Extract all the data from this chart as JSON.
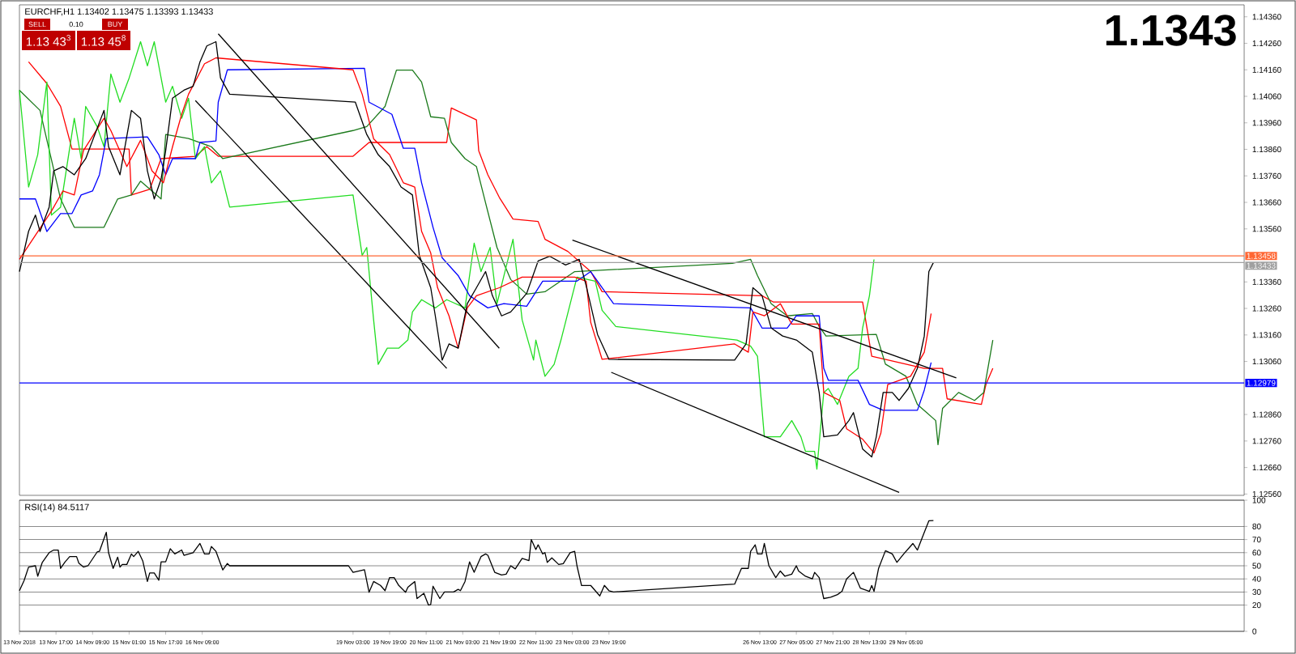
{
  "chart_data": [
    {
      "type": "line",
      "title": "EURCHF,H1 1.13402 1.13475 1.13393 1.13433",
      "annotations": [
        "1.1343",
        "SELL",
        "0.10",
        "BUY",
        "1.13 43$^{3}$",
        "1.13 45$^{8}$"
      ],
      "xlim": [
        "2018-11-13T01:00",
        "2018-12-05T09:00"
      ],
      "ylim": [
        1.12555,
        1.14405
      ],
      "tick_labels": "y",
      "yticks": [
        {
          "value": 1.1256,
          "label": "1.12560"
        },
        {
          "value": 1.1266,
          "label": "1.12660"
        },
        {
          "value": 1.1276,
          "label": "1.12760"
        },
        {
          "value": 1.1286,
          "label": "1.12860"
        },
        {
          "value": 1.1306,
          "label": "1.13060"
        },
        {
          "value": 1.1316,
          "label": "1.13160"
        },
        {
          "value": 1.1326,
          "label": "1.13260"
        },
        {
          "value": 1.1336,
          "label": "1.13360"
        },
        {
          "value": 1.1356,
          "label": "1.13560"
        },
        {
          "value": 1.1366,
          "label": "1.13660"
        },
        {
          "value": 1.1376,
          "label": "1.13760"
        },
        {
          "value": 1.1386,
          "label": "1.13860"
        },
        {
          "value": 1.1396,
          "label": "1.13960"
        },
        {
          "value": 1.1406,
          "label": "1.14060"
        },
        {
          "value": 1.1416,
          "label": "1.14160"
        },
        {
          "value": 1.1426,
          "label": "1.14260"
        },
        {
          "value": 1.1436,
          "label": "1.14360"
        }
      ],
      "ref_lines": [
        {
          "axis": "y",
          "value": 1.13458,
          "label": "1.13458",
          "color": "#ff6633"
        },
        {
          "axis": "y",
          "value": 1.13433,
          "label": "1.13433",
          "color": "#a0a0a0"
        },
        {
          "axis": "y",
          "value": 1.12979,
          "label": "1.12979",
          "color": "#0000ff"
        }
      ],
      "series": [
        {
          "color": "#ff0000",
          "x": [
            "2018-11-13T05:00",
            "2018-11-13T13:00",
            "2018-11-13T19:00",
            "2018-11-14T00:00",
            "2018-11-15T01:00",
            "2018-11-15T02:00",
            "2018-11-15T10:00",
            "2018-11-15T15:00",
            "2018-11-16T06:00",
            "2018-11-16T11:00",
            "2018-11-16T16:00",
            "2018-11-19T03:00",
            "2018-11-19T10:00",
            "2018-11-20T20:00",
            "2018-11-20T22:00",
            "2018-11-21T09:00",
            "2018-11-21T10:00",
            "2018-11-21T14:00",
            "2018-11-21T19:00",
            "2018-11-22T01:00",
            "2018-11-22T12:00",
            "2018-11-22T15:00",
            "2018-11-23T01:00",
            "2018-11-23T11:00",
            "2018-11-23T16:00",
            "2018-11-26T14:00",
            "2018-11-26T19:00",
            "2018-11-28T10:00",
            "2018-11-28T14:00",
            "2018-11-29T13:00",
            "2018-11-29T21:00",
            "2018-11-29T23:00",
            "2018-11-30T14:00",
            "2018-11-30T16:00",
            "2018-11-30T19:00"
          ],
          "values": [
            1.1419,
            1.14108,
            1.14022,
            1.13861,
            1.13861,
            1.13688,
            1.13709,
            1.13825,
            1.13834,
            1.1387,
            1.13834,
            1.13834,
            1.13886,
            1.13886,
            1.14016,
            1.13971,
            1.13855,
            1.13764,
            1.13679,
            1.13597,
            1.13588,
            1.13521,
            1.13475,
            1.13399,
            1.13323,
            1.13308,
            1.13284,
            1.13284,
            1.1308,
            1.13034,
            1.13034,
            1.12919,
            1.12898,
            1.12974,
            1.13034
          ]
        },
        {
          "color": "#1b7a1b",
          "x": [
            "2018-11-13T01:00",
            "2018-11-13T10:00",
            "2018-11-13T19:00",
            "2018-11-14T01:00",
            "2018-11-14T14:00",
            "2018-11-14T20:00",
            "2018-11-15T02:00",
            "2018-11-15T06:00",
            "2018-11-15T15:00",
            "2018-11-15T17:00",
            "2018-11-16T03:00",
            "2018-11-16T13:00",
            "2018-11-16T18:00",
            "2018-11-19T03:00",
            "2018-11-19T09:00",
            "2018-11-19T17:00",
            "2018-11-19T22:00",
            "2018-11-20T05:00",
            "2018-11-20T09:00",
            "2018-11-20T13:00",
            "2018-11-20T19:00",
            "2018-11-20T22:00",
            "2018-11-21T04:00",
            "2018-11-21T09:00",
            "2018-11-21T13:00",
            "2018-11-21T18:00",
            "2018-11-22T00:00",
            "2018-11-22T07:00",
            "2018-11-22T15:00",
            "2018-11-23T04:00",
            "2018-11-26T01:00",
            "2018-11-26T09:00",
            "2018-11-26T12:00",
            "2018-11-26T18:00",
            "2018-11-27T01:00",
            "2018-11-27T12:00",
            "2018-11-27T15:00",
            "2018-11-27T18:00",
            "2018-11-28T16:00",
            "2018-11-28T20:00",
            "2018-11-29T05:00",
            "2018-11-29T10:00",
            "2018-11-29T18:00",
            "2018-11-29T19:00",
            "2018-11-29T21:00",
            "2018-11-30T04:00",
            "2018-11-30T11:00",
            "2018-11-30T15:00",
            "2018-11-30T19:00"
          ],
          "values": [
            1.14083,
            1.14007,
            1.13673,
            1.13566,
            1.13566,
            1.13673,
            1.13688,
            1.1374,
            1.13673,
            1.13916,
            1.13901,
            1.1387,
            1.13825,
            1.13931,
            1.13946,
            1.14022,
            1.14159,
            1.14159,
            1.14114,
            1.13983,
            1.13977,
            1.13886,
            1.13825,
            1.13795,
            1.13658,
            1.1349,
            1.13369,
            1.13314,
            1.13323,
            1.13399,
            1.1343,
            1.13445,
            1.13384,
            1.13278,
            1.13232,
            1.13241,
            1.13192,
            1.13156,
            1.13162,
            1.1305,
            1.13004,
            1.12898,
            1.12837,
            1.12746,
            1.12883,
            1.12943,
            1.12913,
            1.12943,
            1.13141
          ]
        },
        {
          "color": "#22dd22",
          "x": [
            "2018-11-13T01:00",
            "2018-11-13T05:00",
            "2018-11-13T09:00",
            "2018-11-13T13:00",
            "2018-11-13T15:00",
            "2018-11-13T19:00",
            "2018-11-14T01:00",
            "2018-11-14T04:00",
            "2018-11-14T06:00",
            "2018-11-14T11:00",
            "2018-11-14T14:00",
            "2018-11-14T17:00",
            "2018-11-14T21:00",
            "2018-11-15T01:00",
            "2018-11-15T06:00",
            "2018-11-15T09:00",
            "2018-11-15T12:00",
            "2018-11-15T17:00",
            "2018-11-15T20:00",
            "2018-11-16T00:00",
            "2018-11-16T03:00",
            "2018-11-16T06:00",
            "2018-11-16T10:00",
            "2018-11-16T13:00",
            "2018-11-16T17:00",
            "2018-11-16T21:00",
            "2018-11-19T03:00",
            "2018-11-19T07:00",
            "2018-11-19T09:00",
            "2018-11-19T12:00",
            "2018-11-19T14:00",
            "2018-11-19T18:00",
            "2018-11-19T23:00",
            "2018-11-20T03:00",
            "2018-11-20T05:00",
            "2018-11-20T09:00",
            "2018-11-20T15:00",
            "2018-11-20T20:00",
            "2018-11-21T04:00",
            "2018-11-21T08:00",
            "2018-11-21T11:00",
            "2018-11-21T15:00",
            "2018-11-21T18:00",
            "2018-11-22T01:00",
            "2018-11-22T05:00",
            "2018-11-22T10:00",
            "2018-11-22T11:00",
            "2018-11-22T15:00",
            "2018-11-22T19:00",
            "2018-11-22T22:00",
            "2018-11-23T05:00",
            "2018-11-23T13:00",
            "2018-11-23T16:00",
            "2018-11-23T22:00",
            "2018-11-26T03:00",
            "2018-11-26T09:00",
            "2018-11-26T12:00",
            "2018-11-26T15:00",
            "2018-11-26T22:00",
            "2018-11-27T03:00",
            "2018-11-27T07:00",
            "2018-11-27T09:00",
            "2018-11-27T13:00",
            "2018-11-27T14:00",
            "2018-11-27T17:00",
            "2018-11-27T19:00",
            "2018-11-27T23:00",
            "2018-11-28T04:00",
            "2018-11-28T08:00",
            "2018-11-28T10:00",
            "2018-11-28T13:00",
            "2018-11-28T15:00"
          ],
          "values": [
            1.14083,
            1.13718,
            1.1384,
            1.14114,
            1.13612,
            1.13642,
            1.13977,
            1.13825,
            1.14022,
            1.13946,
            1.1387,
            1.14144,
            1.14038,
            1.14129,
            1.14266,
            1.14175,
            1.14266,
            1.14038,
            1.14098,
            1.13977,
            1.14053,
            1.13825,
            1.1387,
            1.13734,
            1.13779,
            1.13642,
            1.13688,
            1.1346,
            1.1349,
            1.13217,
            1.13049,
            1.1311,
            1.1311,
            1.13141,
            1.13247,
            1.13293,
            1.13262,
            1.13293,
            1.13262,
            1.13506,
            1.13399,
            1.1349,
            1.13278,
            1.13521,
            1.13217,
            1.13065,
            1.13141,
            1.13004,
            1.13049,
            1.13141,
            1.13378,
            1.13363,
            1.13253,
            1.13192,
            1.13141,
            1.13118,
            1.1308,
            1.12776,
            1.12776,
            1.12837,
            1.12776,
            1.12721,
            1.12721,
            1.12654,
            1.12943,
            1.12958,
            1.12898,
            1.13004,
            1.13034,
            1.13186,
            1.13308,
            1.13445
          ]
        },
        {
          "color": "#0000ff",
          "x": [
            "2018-11-13T01:00",
            "2018-11-13T08:00",
            "2018-11-13T13:00",
            "2018-11-13T19:00",
            "2018-11-14T00:00",
            "2018-11-14T04:00",
            "2018-11-14T09:00",
            "2018-11-14T12:00",
            "2018-11-14T15:00",
            "2018-11-15T09:00",
            "2018-11-15T14:00",
            "2018-11-15T17:00",
            "2018-11-15T20:00",
            "2018-11-16T06:00",
            "2018-11-16T08:00",
            "2018-11-16T15:00",
            "2018-11-16T16:00",
            "2018-11-16T20:00",
            "2018-11-19T08:00",
            "2018-11-19T10:00",
            "2018-11-19T20:00",
            "2018-11-20T01:00",
            "2018-11-20T06:00",
            "2018-11-20T09:00",
            "2018-11-20T14:00",
            "2018-11-20T18:00",
            "2018-11-21T01:00",
            "2018-11-21T06:00",
            "2018-11-21T14:00",
            "2018-11-21T21:00",
            "2018-11-22T07:00",
            "2018-11-22T14:00",
            "2018-11-23T05:00",
            "2018-11-23T11:00",
            "2018-11-23T21:00",
            "2018-11-26T09:00",
            "2018-11-26T14:00",
            "2018-11-27T01:00",
            "2018-11-27T05:00",
            "2018-11-27T15:00",
            "2018-11-27T17:00",
            "2018-11-27T19:00",
            "2018-11-28T08:00",
            "2018-11-28T13:00",
            "2018-11-28T19:00",
            "2018-11-29T10:00",
            "2018-11-29T13:00",
            "2018-11-29T16:00"
          ],
          "values": [
            1.13673,
            1.13673,
            1.1355,
            1.13618,
            1.13618,
            1.13688,
            1.13703,
            1.13764,
            1.13901,
            1.13907,
            1.1384,
            1.13764,
            1.13825,
            1.13825,
            1.13886,
            1.13892,
            1.14038,
            1.1416,
            1.14166,
            1.14038,
            1.13992,
            1.13864,
            1.13864,
            1.13734,
            1.13566,
            1.13451,
            1.13384,
            1.13308,
            1.13262,
            1.13278,
            1.13268,
            1.13363,
            1.13363,
            1.13399,
            1.13278,
            1.13262,
            1.13186,
            1.13186,
            1.13232,
            1.13232,
            1.13034,
            1.12989,
            1.12989,
            1.12898,
            1.12876,
            1.12876,
            1.12952,
            1.13056
          ]
        },
        {
          "color": "#ff0000",
          "x": [
            "2018-11-13T01:00",
            "2018-11-13T08:00",
            "2018-11-13T15:00",
            "2018-11-13T20:00",
            "2018-11-14T01:00",
            "2018-11-14T05:00",
            "2018-11-14T14:00",
            "2018-11-14T17:00",
            "2018-11-15T00:00",
            "2018-11-15T06:00",
            "2018-11-15T11:00",
            "2018-11-15T16:00",
            "2018-11-15T20:00",
            "2018-11-16T00:00",
            "2018-11-16T03:00",
            "2018-11-16T10:00",
            "2018-11-16T15:00",
            "2018-11-19T03:00",
            "2018-11-19T07:00",
            "2018-11-19T12:00",
            "2018-11-19T19:00",
            "2018-11-20T01:00",
            "2018-11-20T06:00",
            "2018-11-20T09:00",
            "2018-11-20T13:00",
            "2018-11-20T16:00",
            "2018-11-20T21:00",
            "2018-11-21T01:00",
            "2018-11-21T05:00",
            "2018-11-21T09:00",
            "2018-11-21T19:00",
            "2018-11-22T05:00",
            "2018-11-23T04:00",
            "2018-11-23T09:00",
            "2018-11-23T11:00",
            "2018-11-23T16:00",
            "2018-11-26T02:00",
            "2018-11-26T08:00",
            "2018-11-26T10:00",
            "2018-11-26T15:00",
            "2018-11-26T22:00",
            "2018-11-27T03:00",
            "2018-11-27T15:00",
            "2018-11-27T17:00",
            "2018-11-28T00:00",
            "2018-11-28T03:00",
            "2018-11-28T10:00",
            "2018-11-28T15:00",
            "2018-11-28T18:00",
            "2018-11-28T21:00",
            "2018-11-29T07:00",
            "2018-11-29T13:00",
            "2018-11-29T16:00"
          ],
          "values": [
            1.13445,
            1.13536,
            1.13627,
            1.13703,
            1.13688,
            1.13855,
            1.13977,
            1.13931,
            1.13795,
            1.13894,
            1.13779,
            1.13734,
            1.1387,
            1.13992,
            1.14068,
            1.14183,
            1.14205,
            1.1416,
            1.14068,
            1.139,
            1.1384,
            1.13734,
            1.13718,
            1.13551,
            1.13469,
            1.13338,
            1.13232,
            1.1311,
            1.13262,
            1.13308,
            1.13338,
            1.13378,
            1.13378,
            1.13363,
            1.13208,
            1.13068,
            1.13126,
            1.13095,
            1.13247,
            1.13232,
            1.13278,
            1.13201,
            1.13201,
            1.12943,
            1.12913,
            1.12806,
            1.12767,
            1.12715,
            1.1279,
            1.12973,
            1.13004,
            1.13095,
            1.13241
          ]
        },
        {
          "color": "#000000",
          "x": [
            "2018-11-13T01:00",
            "2018-11-13T05:00",
            "2018-11-13T08:00",
            "2018-11-13T10:00",
            "2018-11-13T14:00",
            "2018-11-13T16:00",
            "2018-11-13T20:00",
            "2018-11-14T01:00",
            "2018-11-14T06:00",
            "2018-11-14T14:00",
            "2018-11-14T16:00",
            "2018-11-14T21:00",
            "2018-11-15T02:00",
            "2018-11-15T06:00",
            "2018-11-15T09:00",
            "2018-11-15T12:00",
            "2018-11-15T15:00",
            "2018-11-15T17:00",
            "2018-11-15T20:00",
            "2018-11-16T01:00",
            "2018-11-16T05:00",
            "2018-11-16T08:00",
            "2018-11-16T11:00",
            "2018-11-16T15:00",
            "2018-11-16T17:00",
            "2018-11-16T21:00",
            "2018-11-19T04:00",
            "2018-11-19T09:00",
            "2018-11-19T14:00",
            "2018-11-19T19:00",
            "2018-11-20T00:00",
            "2018-11-20T05:00",
            "2018-11-20T08:00",
            "2018-11-20T13:00",
            "2018-11-20T15:00",
            "2018-11-20T18:00",
            "2018-11-20T21:00",
            "2018-11-21T01:00",
            "2018-11-21T05:00",
            "2018-11-21T09:00",
            "2018-11-21T13:00",
            "2018-11-21T16:00",
            "2018-11-21T20:00",
            "2018-11-22T00:00",
            "2018-11-22T07:00",
            "2018-11-22T12:00",
            "2018-11-22T17:00",
            "2018-11-23T00:00",
            "2018-11-23T06:00",
            "2018-11-23T09:00",
            "2018-11-23T14:00",
            "2018-11-23T19:00",
            "2018-11-26T02:00",
            "2018-11-26T07:00",
            "2018-11-26T10:00",
            "2018-11-26T14:00",
            "2018-11-26T18:00",
            "2018-11-26T23:00",
            "2018-11-27T05:00",
            "2018-11-27T12:00",
            "2018-11-27T15:00",
            "2018-11-27T17:00",
            "2018-11-27T23:00",
            "2018-11-28T04:00",
            "2018-11-28T06:00",
            "2018-11-28T10:00",
            "2018-11-28T14:00",
            "2018-11-28T16:00",
            "2018-11-28T19:00",
            "2018-11-28T23:00",
            "2018-11-29T02:00",
            "2018-11-29T06:00",
            "2018-11-29T10:00",
            "2018-11-29T13:00",
            "2018-11-29T15:00",
            "2018-11-29T17:00"
          ],
          "values": [
            1.13399,
            1.13551,
            1.13612,
            1.1355,
            1.13642,
            1.13779,
            1.13795,
            1.13764,
            1.13825,
            1.14007,
            1.1387,
            1.13764,
            1.14007,
            1.13977,
            1.13779,
            1.13673,
            1.13748,
            1.13855,
            1.14053,
            1.14083,
            1.14098,
            1.1419,
            1.1425,
            1.14266,
            1.14129,
            1.14068,
            1.14038,
            1.13916,
            1.1384,
            1.13795,
            1.13718,
            1.13688,
            1.1346,
            1.13338,
            1.13232,
            1.13065,
            1.13126,
            1.1311,
            1.13278,
            1.13338,
            1.13399,
            1.13308,
            1.13232,
            1.13247,
            1.13317,
            1.13439,
            1.13457,
            1.13424,
            1.13445,
            1.13347,
            1.13162,
            1.13068,
            1.13065,
            1.13126,
            1.13338,
            1.13308,
            1.13186,
            1.13156,
            1.13141,
            1.13095,
            1.12943,
            1.12776,
            1.12783,
            1.12837,
            1.12867,
            1.1273,
            1.127,
            1.12776,
            1.12943,
            1.12943,
            1.12913,
            1.12958,
            1.13034,
            1.13156,
            1.13399,
            1.13433
          ]
        },
        {
          "color": "#000000",
          "x": [
            "2018-11-16T06:00",
            "2018-11-20T20:00"
          ],
          "values": [
            1.14044,
            1.13034
          ]
        },
        {
          "color": "#000000",
          "x": [
            "2018-11-16T16:00",
            "2018-11-21T19:00"
          ],
          "values": [
            1.14296,
            1.1311
          ]
        },
        {
          "color": "#000000",
          "x": [
            "2018-11-23T03:00",
            "2018-11-30T03:00"
          ],
          "values": [
            1.13518,
            1.12998
          ]
        },
        {
          "color": "#000000",
          "x": [
            "2018-11-23T20:00",
            "2018-11-29T02:00"
          ],
          "values": [
            1.13019,
            1.12566
          ]
        }
      ]
    },
    {
      "type": "line",
      "title": "RSI(14) 84.5117",
      "xlim": [
        "2018-11-13T01:00",
        "2018-12-05T09:00"
      ],
      "ylim": [
        0,
        100
      ],
      "grid": "y",
      "yticks": [
        0,
        20,
        30,
        40,
        50,
        60,
        70,
        80,
        100
      ],
      "xticks": [
        {
          "value": "2018-11-13T01:00",
          "label": "13 Nov 2018"
        },
        {
          "value": "2018-11-13T17:00",
          "label": "13 Nov 17:00"
        },
        {
          "value": "2018-11-14T09:00",
          "label": "14 Nov 09:00"
        },
        {
          "value": "2018-11-15T01:00",
          "label": "15 Nov 01:00"
        },
        {
          "value": "2018-11-15T17:00",
          "label": "15 Nov 17:00"
        },
        {
          "value": "2018-11-16T09:00",
          "label": "16 Nov 09:00"
        },
        {
          "value": "2018-11-19T03:00",
          "label": "19 Nov 03:00"
        },
        {
          "value": "2018-11-19T19:00",
          "label": "19 Nov 19:00"
        },
        {
          "value": "2018-11-20T11:00",
          "label": "20 Nov 11:00"
        },
        {
          "value": "2018-11-21T03:00",
          "label": "21 Nov 03:00"
        },
        {
          "value": "2018-11-21T19:00",
          "label": "21 Nov 19:00"
        },
        {
          "value": "2018-11-22T11:00",
          "label": "22 Nov 11:00"
        },
        {
          "value": "2018-11-23T03:00",
          "label": "23 Nov 03:00"
        },
        {
          "value": "2018-11-23T19:00",
          "label": "23 Nov 19:00"
        },
        {
          "value": "2018-11-26T13:00",
          "label": "26 Nov 13:00"
        },
        {
          "value": "2018-11-27T05:00",
          "label": "27 Nov 05:00"
        },
        {
          "value": "2018-11-27T21:00",
          "label": "27 Nov 21:00"
        },
        {
          "value": "2018-11-28T13:00",
          "label": "28 Nov 13:00"
        },
        {
          "value": "2018-11-29T05:00",
          "label": "29 Nov 05:00"
        }
      ],
      "series": [
        {
          "color": "#000000",
          "x": [
            "2018-11-13T01:00",
            "2018-11-13T03:00",
            "2018-11-13T05:00",
            "2018-11-13T08:00",
            "2018-11-13T09:00",
            "2018-11-13T11:00",
            "2018-11-13T14:00",
            "2018-11-13T16:00",
            "2018-11-13T18:00",
            "2018-11-13T19:00",
            "2018-11-13T21:00",
            "2018-11-13T23:00",
            "2018-11-14T02:00",
            "2018-11-14T03:00",
            "2018-11-14T05:00",
            "2018-11-14T07:00",
            "2018-11-14T11:00",
            "2018-11-14T12:00",
            "2018-11-14T15:00",
            "2018-11-14T16:00",
            "2018-11-14T18:00",
            "2018-11-14T20:00",
            "2018-11-14T21:00",
            "2018-11-14T22:00",
            "2018-11-15T00:00",
            "2018-11-15T02:00",
            "2018-11-15T03:00",
            "2018-11-15T05:00",
            "2018-11-15T07:00",
            "2018-11-15T09:00",
            "2018-11-15T10:00",
            "2018-11-15T12:00",
            "2018-11-15T14:00",
            "2018-11-15T15:00",
            "2018-11-15T17:00",
            "2018-11-15T19:00",
            "2018-11-15T21:00",
            "2018-11-16T00:00",
            "2018-11-16T01:00",
            "2018-11-16T05:00",
            "2018-11-16T08:00",
            "2018-11-16T10:00",
            "2018-11-16T12:00",
            "2018-11-16T13:00",
            "2018-11-16T15:00",
            "2018-11-16T18:00",
            "2018-11-16T20:00",
            "2018-11-16T21:00",
            "2018-11-19T01:00",
            "2018-11-19T03:00",
            "2018-11-19T08:00",
            "2018-11-19T10:00",
            "2018-11-19T12:00",
            "2018-11-19T15:00",
            "2018-11-19T17:00",
            "2018-11-19T19:00",
            "2018-11-19T21:00",
            "2018-11-19T23:00",
            "2018-11-20T02:00",
            "2018-11-20T03:00",
            "2018-11-20T06:00",
            "2018-11-20T07:00",
            "2018-11-20T10:00",
            "2018-11-20T12:00",
            "2018-11-20T13:00",
            "2018-11-20T14:00",
            "2018-11-20T17:00",
            "2018-11-20T19:00",
            "2018-11-20T23:00",
            "2018-11-21T01:00",
            "2018-11-21T02:00",
            "2018-11-21T04:00",
            "2018-11-21T06:00",
            "2018-11-21T08:00",
            "2018-11-21T11:00",
            "2018-11-21T13:00",
            "2018-11-21T14:00",
            "2018-11-21T17:00",
            "2018-11-21T20:00",
            "2018-11-21T22:00",
            "2018-11-22T00:00",
            "2018-11-22T02:00",
            "2018-11-22T05:00",
            "2018-11-22T08:00",
            "2018-11-22T09:00",
            "2018-11-22T11:00",
            "2018-11-22T12:00",
            "2018-11-22T14:00",
            "2018-11-22T15:00",
            "2018-11-22T16:00",
            "2018-11-22T18:00",
            "2018-11-22T21:00",
            "2018-11-22T23:00",
            "2018-11-23T02:00",
            "2018-11-23T04:00",
            "2018-11-23T05:00",
            "2018-11-23T07:00",
            "2018-11-23T11:00",
            "2018-11-23T15:00",
            "2018-11-23T17:00",
            "2018-11-23T19:00",
            "2018-11-23T21:00",
            "2018-11-26T02:00",
            "2018-11-26T05:00",
            "2018-11-26T08:00",
            "2018-11-26T09:00",
            "2018-11-26T11:00",
            "2018-11-26T12:00",
            "2018-11-26T14:00",
            "2018-11-26T15:00",
            "2018-11-26T17:00",
            "2018-11-26T20:00",
            "2018-11-26T22:00",
            "2018-11-27T00:00",
            "2018-11-27T03:00",
            "2018-11-27T05:00",
            "2018-11-27T06:00",
            "2018-11-27T09:00",
            "2018-11-27T12:00",
            "2018-11-27T13:00",
            "2018-11-27T15:00",
            "2018-11-27T17:00",
            "2018-11-27T20:00",
            "2018-11-27T23:00",
            "2018-11-28T01:00",
            "2018-11-28T03:00",
            "2018-11-28T06:00",
            "2018-11-28T09:00",
            "2018-11-28T13:00",
            "2018-11-28T14:00",
            "2018-11-28T15:00",
            "2018-11-28T17:00",
            "2018-11-28T20:00",
            "2018-11-28T23:00",
            "2018-11-29T01:00",
            "2018-11-29T04:00",
            "2018-11-29T07:00",
            "2018-11-29T08:00",
            "2018-11-29T10:00",
            "2018-11-29T13:00",
            "2018-11-29T15:00",
            "2018-11-29T17:00"
          ],
          "values": [
            31,
            38.6,
            49,
            50,
            42,
            52.6,
            60,
            62,
            62,
            48,
            53,
            57,
            57,
            52,
            49,
            50,
            60.5,
            61,
            75.5,
            60,
            48,
            56.6,
            49,
            51,
            51,
            59,
            57,
            61,
            53.5,
            38,
            44.5,
            44.5,
            39,
            53,
            53,
            63,
            59,
            62,
            58,
            60,
            67,
            59,
            59,
            64.7,
            61,
            46.8,
            51.7,
            50,
            50,
            45,
            47,
            29.8,
            38,
            35,
            31,
            41,
            41,
            35,
            29.8,
            33.6,
            38,
            25,
            29,
            20,
            20.5,
            34.4,
            25,
            30,
            30,
            32,
            31,
            38,
            53,
            45,
            57,
            59,
            58,
            45,
            43,
            43.6,
            50,
            47.6,
            55.6,
            54,
            70,
            62.4,
            66,
            59,
            60,
            52.6,
            56,
            51,
            51.6,
            60,
            61,
            50,
            35,
            35,
            27,
            35,
            31,
            30,
            36,
            48,
            48,
            61,
            66,
            59,
            59,
            67,
            50,
            41,
            46,
            42,
            43.6,
            50,
            46,
            42,
            40,
            45,
            41,
            25,
            26,
            28,
            30.5,
            40,
            45,
            33,
            30.5,
            35,
            30.5,
            48,
            61.5,
            59,
            52.6,
            59,
            65,
            67,
            62,
            75.5,
            84.3,
            84.5
          ]
        }
      ]
    }
  ]
}
